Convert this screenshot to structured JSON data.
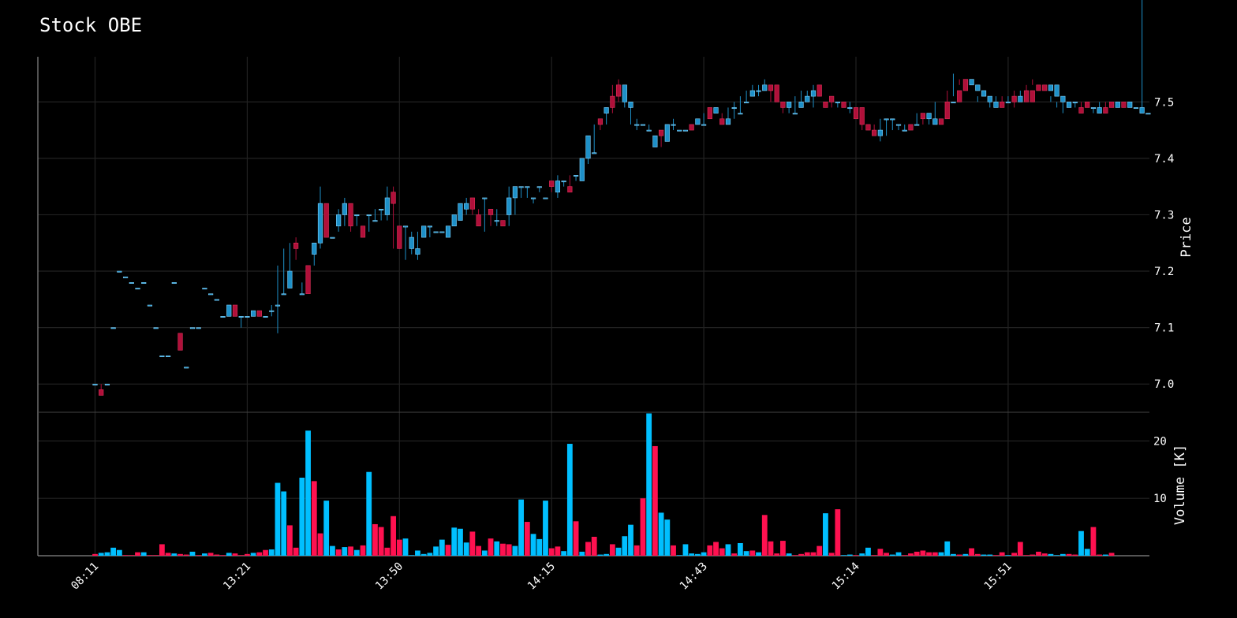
{
  "title": "Stock OBE",
  "colors": {
    "background": "#000000",
    "up": "#1e90c8",
    "down": "#b0103a",
    "vol_up": "#00bfff",
    "vol_down": "#ff1150",
    "grid": "#222222",
    "axis": "#888888",
    "text": "#ffffff"
  },
  "chart_data": [
    {
      "type": "candlestick",
      "title": "Stock OBE",
      "ylabel": "Price",
      "ylim": [
        6.95,
        7.58
      ],
      "yticks": [
        7.0,
        7.1,
        7.2,
        7.3,
        7.4,
        7.5
      ],
      "ytick_labels": [
        "7.0",
        "7.1",
        "7.2",
        "7.3",
        "7.4",
        "7.5"
      ],
      "xtick_labels": [
        "08:11",
        "13:21",
        "13:50",
        "14:15",
        "14:43",
        "15:14",
        "15:51"
      ],
      "grid": true,
      "o": [
        7.0,
        6.99,
        7.0,
        7.1,
        7.2,
        7.19,
        7.18,
        7.17,
        7.18,
        7.14,
        7.1,
        7.05,
        7.05,
        7.18,
        7.09,
        7.03,
        7.1,
        7.1,
        7.17,
        7.16,
        7.15,
        7.12,
        7.12,
        7.14,
        7.12,
        7.12,
        7.12,
        7.13,
        7.12,
        7.13,
        7.14,
        7.16,
        7.17,
        7.25,
        7.16,
        7.21,
        7.23,
        7.25,
        7.32,
        7.26,
        7.28,
        7.3,
        7.32,
        7.3,
        7.28,
        7.3,
        7.29,
        7.31,
        7.3,
        7.34,
        7.28,
        7.28,
        7.24,
        7.23,
        7.26,
        7.28,
        7.27,
        7.27,
        7.26,
        7.28,
        7.29,
        7.31,
        7.33,
        7.3,
        7.33,
        7.31,
        7.29,
        7.29,
        7.3,
        7.33,
        7.35,
        7.35,
        7.33,
        7.35,
        7.33,
        7.36,
        7.34,
        7.36,
        7.35,
        7.37,
        7.36,
        7.4,
        7.41,
        7.47,
        7.48,
        7.51,
        7.53,
        7.5,
        7.49,
        7.46,
        7.46,
        7.45,
        7.42,
        7.45,
        7.43,
        7.46,
        7.45,
        7.45,
        7.46,
        7.46,
        7.46,
        7.49,
        7.48,
        7.47,
        7.46,
        7.49,
        7.48,
        7.5,
        7.51,
        7.52,
        7.52,
        7.53,
        7.53,
        7.5,
        7.49,
        7.48,
        7.49,
        7.5,
        7.51,
        7.53,
        7.5,
        7.51,
        7.5,
        7.5,
        7.49,
        7.49,
        7.49,
        7.46,
        7.45,
        7.44,
        7.47,
        7.47,
        7.46,
        7.45,
        7.46,
        7.46,
        7.48,
        7.47,
        7.46,
        7.47,
        7.5,
        7.5,
        7.52,
        7.54,
        7.53,
        7.52,
        7.51,
        7.5,
        7.49,
        7.5,
        7.5,
        7.51,
        7.5,
        7.52,
        7.52,
        7.53,
        7.53,
        7.52,
        7.51,
        7.5,
        7.49,
        7.5,
        7.49,
        7.5,
        7.49,
        7.48,
        7.49,
        7.5,
        7.49,
        7.5,
        7.49,
        7.49,
        7.48,
        7.48
      ],
      "h": [
        7.0,
        7.0,
        7.0,
        7.1,
        7.2,
        7.19,
        7.18,
        7.17,
        7.18,
        7.14,
        7.1,
        7.05,
        7.05,
        7.18,
        7.09,
        7.03,
        7.1,
        7.1,
        7.17,
        7.16,
        7.15,
        7.12,
        7.14,
        7.14,
        7.12,
        7.12,
        7.13,
        7.13,
        7.12,
        7.14,
        7.21,
        7.24,
        7.25,
        7.26,
        7.18,
        7.21,
        7.25,
        7.35,
        7.32,
        7.26,
        7.31,
        7.33,
        7.32,
        7.3,
        7.28,
        7.3,
        7.31,
        7.31,
        7.35,
        7.35,
        7.28,
        7.28,
        7.27,
        7.27,
        7.26,
        7.28,
        7.27,
        7.27,
        7.28,
        7.29,
        7.31,
        7.33,
        7.33,
        7.31,
        7.33,
        7.31,
        7.31,
        7.29,
        7.35,
        7.35,
        7.35,
        7.35,
        7.33,
        7.35,
        7.33,
        7.36,
        7.37,
        7.36,
        7.37,
        7.37,
        7.4,
        7.41,
        7.46,
        7.47,
        7.49,
        7.53,
        7.54,
        7.51,
        7.5,
        7.47,
        7.46,
        7.46,
        7.43,
        7.45,
        7.46,
        7.47,
        7.45,
        7.45,
        7.46,
        7.47,
        7.48,
        7.49,
        7.48,
        7.48,
        7.49,
        7.5,
        7.51,
        7.52,
        7.53,
        7.53,
        7.54,
        7.53,
        7.53,
        7.5,
        7.49,
        7.51,
        7.52,
        7.52,
        7.53,
        7.53,
        7.5,
        7.51,
        7.5,
        7.5,
        7.5,
        7.49,
        7.47,
        7.46,
        7.46,
        7.47,
        7.47,
        7.47,
        7.46,
        7.46,
        7.46,
        7.48,
        7.47,
        7.47,
        7.5,
        7.5,
        7.52,
        7.55,
        7.54,
        7.52,
        7.51,
        7.5,
        7.5,
        7.5,
        7.51,
        7.51,
        7.51,
        7.52,
        7.52,
        7.53,
        7.54,
        7.52,
        7.51,
        7.5,
        7.49,
        7.5,
        7.5,
        7.5,
        7.5,
        7.49,
        7.49,
        7.5,
        7.5,
        7.5,
        7.5,
        7.49,
        7.48,
        7.48
      ],
      "l": [
        7.0,
        6.98,
        7.0,
        7.1,
        7.2,
        7.19,
        7.18,
        7.17,
        7.18,
        7.14,
        7.1,
        7.05,
        7.05,
        7.18,
        7.08,
        7.03,
        7.1,
        7.1,
        7.17,
        7.16,
        7.15,
        7.12,
        7.12,
        7.12,
        7.1,
        7.12,
        7.12,
        7.12,
        7.12,
        7.12,
        7.09,
        7.16,
        7.17,
        7.22,
        7.16,
        7.21,
        7.21,
        7.24,
        7.27,
        7.26,
        7.27,
        7.28,
        7.27,
        7.28,
        7.26,
        7.27,
        7.29,
        7.29,
        7.29,
        7.24,
        7.24,
        7.22,
        7.23,
        7.22,
        7.26,
        7.26,
        7.27,
        7.27,
        7.26,
        7.28,
        7.29,
        7.3,
        7.3,
        7.29,
        7.27,
        7.28,
        7.28,
        7.28,
        7.28,
        7.3,
        7.33,
        7.33,
        7.32,
        7.34,
        7.33,
        7.34,
        7.33,
        7.35,
        7.35,
        7.36,
        7.36,
        7.39,
        7.41,
        7.45,
        7.46,
        7.48,
        7.5,
        7.49,
        7.46,
        7.45,
        7.46,
        7.45,
        7.42,
        7.42,
        7.43,
        7.45,
        7.45,
        7.45,
        7.45,
        7.46,
        7.46,
        7.47,
        7.48,
        7.46,
        7.46,
        7.47,
        7.48,
        7.5,
        7.51,
        7.51,
        7.52,
        7.5,
        7.5,
        7.48,
        7.48,
        7.48,
        7.49,
        7.5,
        7.49,
        7.51,
        7.49,
        7.49,
        7.49,
        7.49,
        7.48,
        7.47,
        7.45,
        7.45,
        7.44,
        7.43,
        7.44,
        7.45,
        7.45,
        7.45,
        7.45,
        7.46,
        7.46,
        7.46,
        7.46,
        7.5,
        7.5,
        7.51,
        7.53,
        7.52,
        7.51,
        7.51,
        7.5,
        7.49,
        7.49,
        7.5,
        7.5,
        7.49,
        7.5,
        7.52,
        7.53,
        7.52,
        7.51,
        7.51,
        7.5,
        7.48,
        7.49,
        7.49,
        7.49,
        7.49,
        7.48,
        7.48,
        7.49,
        7.49,
        7.49,
        7.49,
        7.48,
        7.48,
        7.48
      ],
      "c": [
        7.0,
        6.98,
        7.0,
        7.1,
        7.2,
        7.19,
        7.18,
        7.17,
        7.18,
        7.14,
        7.1,
        7.05,
        7.05,
        7.18,
        7.06,
        7.03,
        7.1,
        7.1,
        7.17,
        7.16,
        7.15,
        7.12,
        7.14,
        7.12,
        7.12,
        7.12,
        7.13,
        7.12,
        7.12,
        7.13,
        7.14,
        7.16,
        7.2,
        7.24,
        7.16,
        7.16,
        7.25,
        7.32,
        7.26,
        7.26,
        7.3,
        7.32,
        7.28,
        7.3,
        7.26,
        7.3,
        7.29,
        7.31,
        7.33,
        7.32,
        7.24,
        7.28,
        7.26,
        7.24,
        7.28,
        7.28,
        7.27,
        7.27,
        7.28,
        7.3,
        7.32,
        7.32,
        7.31,
        7.28,
        7.33,
        7.3,
        7.29,
        7.28,
        7.33,
        7.35,
        7.35,
        7.35,
        7.33,
        7.35,
        7.33,
        7.35,
        7.36,
        7.36,
        7.34,
        7.37,
        7.4,
        7.44,
        7.41,
        7.46,
        7.49,
        7.49,
        7.51,
        7.53,
        7.5,
        7.46,
        7.46,
        7.45,
        7.44,
        7.44,
        7.46,
        7.46,
        7.45,
        7.45,
        7.45,
        7.47,
        7.46,
        7.47,
        7.49,
        7.46,
        7.47,
        7.49,
        7.48,
        7.5,
        7.52,
        7.52,
        7.53,
        7.52,
        7.5,
        7.49,
        7.5,
        7.48,
        7.5,
        7.51,
        7.52,
        7.51,
        7.49,
        7.5,
        7.5,
        7.49,
        7.49,
        7.47,
        7.46,
        7.45,
        7.44,
        7.45,
        7.47,
        7.47,
        7.46,
        7.45,
        7.45,
        7.46,
        7.47,
        7.48,
        7.47,
        7.46,
        7.47,
        7.5,
        7.5,
        7.52,
        7.54,
        7.53,
        7.52,
        7.51,
        7.5,
        7.49,
        7.5,
        7.5,
        7.51,
        7.5,
        7.5,
        7.52,
        7.52,
        7.53,
        7.53,
        7.51,
        7.5,
        7.5,
        7.48,
        7.49,
        7.49,
        7.49,
        7.48,
        7.49,
        7.5,
        7.49,
        7.5,
        7.49,
        7.49,
        7.48,
        7.48
      ]
    },
    {
      "type": "bar",
      "ylabel": "Volume [K]",
      "ylim": [
        0,
        25
      ],
      "yticks": [
        10,
        20
      ],
      "ytick_labels": [
        "10",
        "20"
      ],
      "grid": true,
      "values": [
        0.3,
        0.5,
        0.6,
        1.4,
        1.0,
        0.1,
        0.1,
        0.6,
        0.6,
        0.1,
        0.1,
        2.0,
        0.5,
        0.4,
        0.3,
        0.2,
        0.7,
        0.1,
        0.4,
        0.5,
        0.2,
        0.1,
        0.5,
        0.4,
        0.1,
        0.3,
        0.5,
        0.6,
        1.0,
        1.1,
        12.7,
        11.2,
        5.3,
        1.4,
        13.6,
        21.8,
        13.0,
        3.9,
        9.6,
        1.7,
        1.1,
        1.5,
        1.6,
        1.0,
        1.8,
        14.6,
        5.5,
        5.0,
        1.4,
        6.9,
        2.8,
        3.0,
        0.1,
        0.9,
        0.3,
        0.5,
        1.6,
        2.8,
        1.9,
        4.9,
        4.7,
        2.3,
        4.2,
        1.7,
        0.9,
        3.0,
        2.5,
        2.1,
        2.0,
        1.7,
        9.8,
        5.9,
        3.8,
        2.9,
        9.6,
        1.3,
        1.6,
        0.8,
        19.5,
        6.0,
        0.7,
        2.4,
        3.3,
        0.2,
        0.3,
        2.0,
        1.4,
        3.4,
        5.4,
        1.8,
        10.0,
        24.8,
        19.1,
        7.5,
        6.3,
        1.8,
        0.1,
        2.0,
        0.4,
        0.3,
        0.6,
        1.8,
        2.4,
        1.3,
        2.0,
        0.4,
        2.2,
        0.8,
        0.9,
        0.6,
        7.1,
        2.5,
        0.4,
        2.6,
        0.4,
        0.1,
        0.3,
        0.6,
        0.6,
        1.7,
        7.4,
        0.5,
        8.1,
        0.1,
        0.2,
        0.1,
        0.4,
        1.4,
        0.1,
        1.2,
        0.5,
        0.2,
        0.6,
        0.1,
        0.4,
        0.7,
        0.9,
        0.6,
        0.6,
        0.6,
        2.5,
        0.3,
        0.2,
        0.3,
        1.3,
        0.3,
        0.2,
        0.2,
        0.1,
        0.6,
        0.1,
        0.5,
        2.4,
        0.1,
        0.2,
        0.7,
        0.4,
        0.3,
        0.1,
        0.3,
        0.3,
        0.2,
        4.3,
        1.2,
        5.0,
        0.2,
        0.2,
        0.5
      ],
      "direction": [
        "down",
        "up",
        "up",
        "up",
        "up",
        "down",
        "down",
        "down",
        "up",
        "down",
        "down",
        "down",
        "down",
        "up",
        "down",
        "down",
        "up",
        "down",
        "up",
        "down",
        "down",
        "down",
        "up",
        "down",
        "down",
        "down",
        "up",
        "down",
        "down",
        "up",
        "up",
        "up",
        "down",
        "down",
        "up",
        "up",
        "down",
        "down",
        "up",
        "up",
        "down",
        "up",
        "down",
        "up",
        "down",
        "up",
        "down",
        "down",
        "down",
        "down",
        "down",
        "up",
        "up",
        "up",
        "up",
        "up",
        "up",
        "up",
        "down",
        "up",
        "up",
        "up",
        "down",
        "down",
        "up",
        "down",
        "up",
        "down",
        "down",
        "up",
        "up",
        "down",
        "up",
        "up",
        "up",
        "down",
        "down",
        "up",
        "up",
        "down",
        "up",
        "down",
        "down",
        "up",
        "up",
        "down",
        "up",
        "up",
        "up",
        "down",
        "down",
        "up",
        "down",
        "up",
        "up",
        "down",
        "up",
        "up",
        "up",
        "up",
        "up",
        "down",
        "down",
        "down",
        "up",
        "down",
        "up",
        "up",
        "down",
        "up",
        "down",
        "down",
        "down",
        "down",
        "up",
        "down",
        "down",
        "down",
        "down",
        "down",
        "up",
        "down",
        "down",
        "up",
        "up",
        "down",
        "up",
        "up",
        "down",
        "down",
        "down",
        "up",
        "up",
        "down",
        "down",
        "down",
        "down",
        "down",
        "down",
        "up",
        "up",
        "up",
        "down",
        "up",
        "down",
        "down",
        "up",
        "up",
        "down",
        "down",
        "up",
        "down",
        "down",
        "down",
        "down",
        "down",
        "down",
        "up",
        "up",
        "up",
        "down",
        "down",
        "up",
        "up",
        "down",
        "down",
        "up",
        "down",
        "down",
        "up"
      ]
    }
  ]
}
